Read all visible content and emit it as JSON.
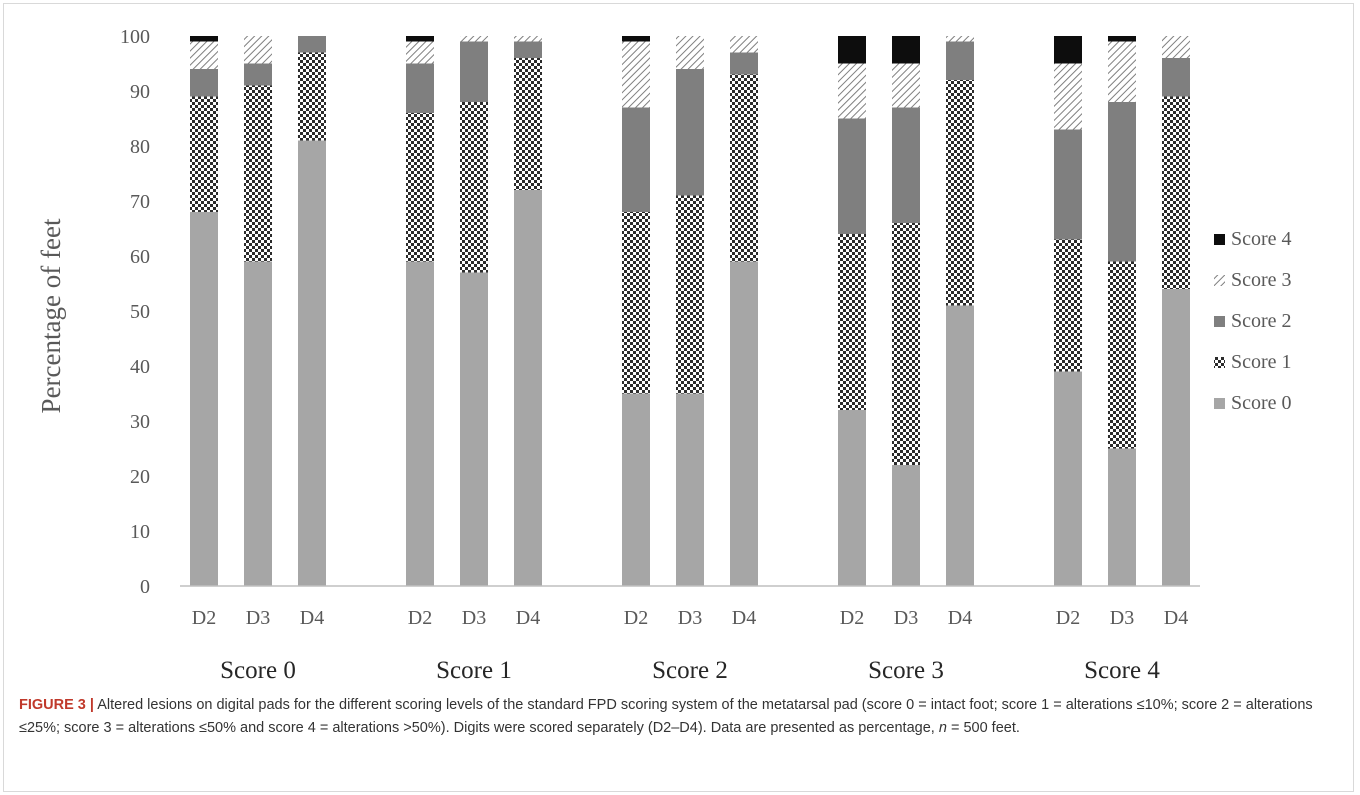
{
  "colors": {
    "score0": "#a6a6a6",
    "score1_checker": "#2b2b2b",
    "score2": "#7f7f7f",
    "score3_hatch": "#7f7f7f",
    "score4": "#0d0d0d",
    "axis": "#bfbfbf",
    "text": "#595959",
    "caption_label": "#c0392b"
  },
  "chart_data": {
    "type": "bar",
    "stacked": true,
    "title": "",
    "xlabel": "",
    "ylabel": "Percentage of feet",
    "ylim": [
      0,
      100
    ],
    "yticks": [
      0,
      10,
      20,
      30,
      40,
      50,
      60,
      70,
      80,
      90,
      100
    ],
    "grid": false,
    "legend_position": "right",
    "groups": [
      {
        "label": "Score 0",
        "categories": [
          "D2",
          "D3",
          "D4"
        ]
      },
      {
        "label": "Score 1",
        "categories": [
          "D2",
          "D3",
          "D4"
        ]
      },
      {
        "label": "Score 2",
        "categories": [
          "D2",
          "D3",
          "D4"
        ]
      },
      {
        "label": "Score 3",
        "categories": [
          "D2",
          "D3",
          "D4"
        ]
      },
      {
        "label": "Score 4",
        "categories": [
          "D2",
          "D3",
          "D4"
        ]
      }
    ],
    "series": [
      {
        "name": "Score 0",
        "pattern": "solid-light",
        "values": [
          68,
          59,
          81,
          59,
          57,
          72,
          35,
          35,
          59,
          32,
          22,
          51,
          39,
          25,
          54
        ]
      },
      {
        "name": "Score 1",
        "pattern": "checkerboard",
        "values": [
          21,
          32,
          16,
          27,
          31,
          24,
          33,
          36,
          34,
          32,
          44,
          41,
          24,
          34,
          35
        ]
      },
      {
        "name": "Score 2",
        "pattern": "solid-mid",
        "values": [
          5,
          4,
          3,
          9,
          11,
          3,
          19,
          23,
          4,
          21,
          21,
          7,
          20,
          29,
          7
        ]
      },
      {
        "name": "Score 3",
        "pattern": "hatch",
        "values": [
          5,
          5,
          0,
          4,
          1,
          1,
          12,
          6,
          3,
          10,
          8,
          1,
          12,
          11,
          4
        ]
      },
      {
        "name": "Score 4",
        "pattern": "solid-dark",
        "values": [
          1,
          0,
          0,
          1,
          0,
          0,
          1,
          0,
          0,
          5,
          5,
          0,
          5,
          1,
          0
        ]
      }
    ]
  },
  "caption": {
    "label": "FIGURE 3",
    "separator": "|",
    "text": "Altered lesions on digital pads for the different scoring levels of the standard FPD scoring system of the metatarsal pad (score 0 = intact foot; score 1 = alterations ≤10%; score 2 = alterations ≤25%; score 3 = alterations ≤50% and score 4 = alterations >50%). Digits were scored separately (D2–D4). Data are presented as percentage, ",
    "n_symbol": "n",
    "n_text": " = 500 feet."
  }
}
